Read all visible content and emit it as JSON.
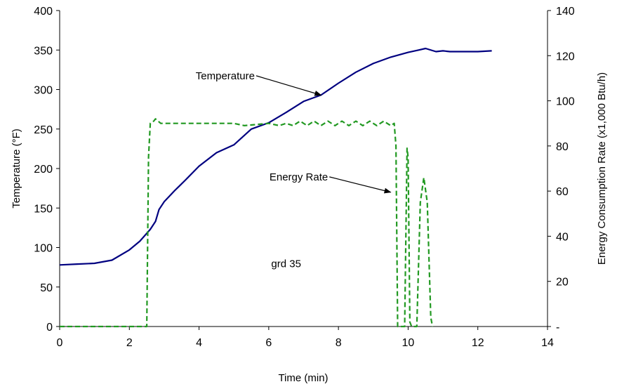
{
  "chart_data": {
    "type": "line",
    "title": "",
    "xlabel": "Time (min)",
    "ylabel_left": "Temperature (°F)",
    "ylabel_right": "Energy Consumption Rate (x1,000 Btu/h)",
    "xlim": [
      0,
      14
    ],
    "xticks": [
      "0",
      "2",
      "4",
      "6",
      "8",
      "10",
      "12",
      "14"
    ],
    "ylim_left": [
      0,
      400
    ],
    "yticks_left": [
      "0",
      "50",
      "100",
      "150",
      "200",
      "250",
      "300",
      "350",
      "400"
    ],
    "ylim_right": [
      0,
      140
    ],
    "yticks_right": [
      "-",
      "20",
      "40",
      "60",
      "80",
      "100",
      "120",
      "140"
    ],
    "grid": false,
    "legend": "none",
    "annotations": [
      {
        "text": "Temperature",
        "arrow_to": [
          7.5,
          293
        ],
        "text_at": [
          5.6,
          313
        ]
      },
      {
        "text": "Energy Rate",
        "arrow_to": [
          9.5,
          170
        ],
        "text_at": [
          7.7,
          185
        ]
      },
      {
        "text": "grd 35",
        "text_at": [
          6.5,
          75
        ]
      }
    ],
    "series": [
      {
        "name": "Temperature",
        "axis": "left",
        "color": "#000080",
        "dash": "solid",
        "x": [
          0,
          0.5,
          1,
          1.5,
          2,
          2.3,
          2.6,
          2.75,
          2.85,
          3,
          3.3,
          3.6,
          4,
          4.5,
          5,
          5.5,
          6,
          6.5,
          7,
          7.5,
          8,
          8.5,
          9,
          9.5,
          10,
          10.3,
          10.5,
          10.8,
          11,
          11.2,
          11.5,
          12,
          12.4
        ],
        "y": [
          78,
          79,
          80,
          84,
          97,
          108,
          123,
          133,
          148,
          158,
          172,
          185,
          203,
          220,
          230,
          250,
          258,
          271,
          285,
          293,
          308,
          322,
          333,
          341,
          347,
          350,
          352,
          348,
          349,
          348,
          348,
          348,
          349
        ]
      },
      {
        "name": "Energy Rate",
        "axis": "right",
        "color": "#229922",
        "dash": "dashed",
        "x": [
          0,
          2.5,
          2.55,
          2.6,
          2.7,
          2.75,
          2.9,
          3.3,
          3.5,
          4,
          5,
          5.3,
          6,
          6.3,
          6.5,
          6.7,
          6.9,
          7.1,
          7.3,
          7.5,
          7.7,
          7.9,
          8.1,
          8.3,
          8.5,
          8.7,
          8.9,
          9.1,
          9.3,
          9.5,
          9.6,
          9.65,
          9.7,
          9.75,
          9.9,
          9.97,
          10.0,
          10.05,
          10.1,
          10.25,
          10.35,
          10.45,
          10.55,
          10.65,
          10.7
        ],
        "y": [
          0,
          0,
          75,
          90,
          91,
          92,
          90,
          90,
          90,
          90,
          90,
          89,
          90,
          89,
          90,
          89,
          91,
          89,
          91,
          89,
          91,
          89,
          91,
          89,
          91,
          89,
          91,
          89,
          91,
          89,
          90,
          80,
          0,
          0,
          0,
          79,
          75,
          2,
          0,
          0,
          55,
          66,
          55,
          4,
          0
        ]
      }
    ]
  }
}
